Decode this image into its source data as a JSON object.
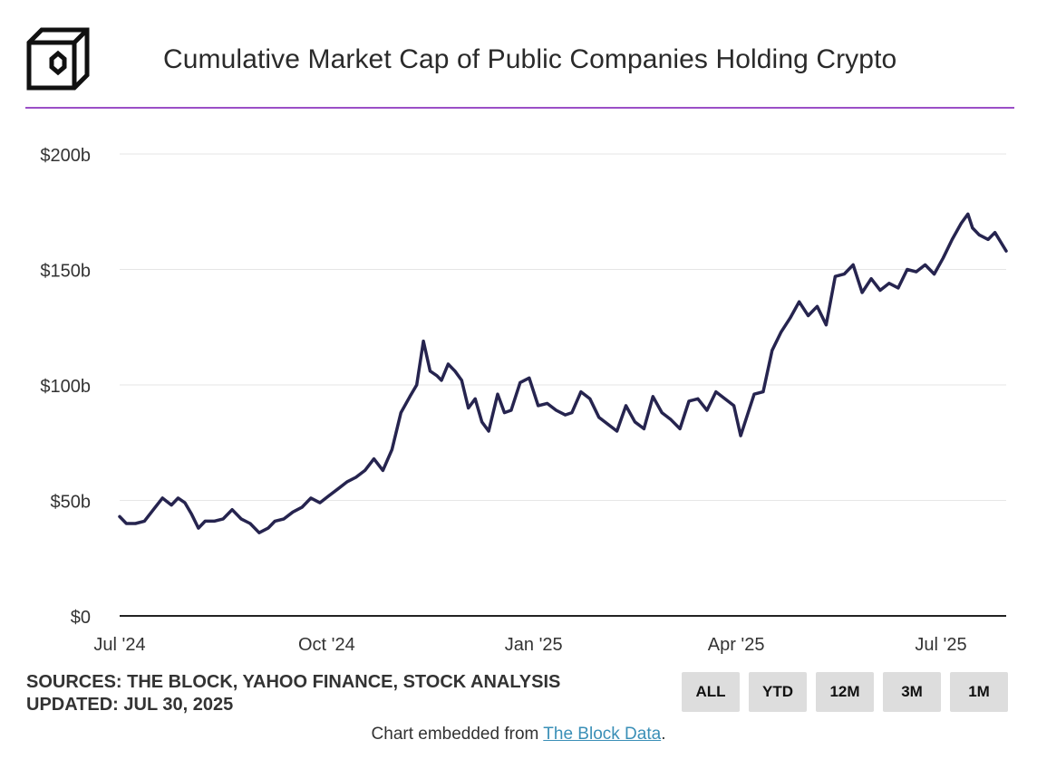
{
  "header": {
    "title": "Cumulative Market Cap of Public Companies Holding Crypto",
    "logo_icon": "the-block-cube-logo"
  },
  "chart_data": {
    "type": "line",
    "title": "Cumulative Market Cap of Public Companies Holding Crypto",
    "xlabel": "",
    "ylabel": "",
    "y_ticks": [
      {
        "value": 0,
        "label": "$0"
      },
      {
        "value": 50,
        "label": "$50b"
      },
      {
        "value": 100,
        "label": "$100b"
      },
      {
        "value": 150,
        "label": "$150b"
      },
      {
        "value": 200,
        "label": "$200b"
      }
    ],
    "x_ticks": [
      {
        "date": "2024-07-01",
        "label": "Jul '24"
      },
      {
        "date": "2024-10-01",
        "label": "Oct '24"
      },
      {
        "date": "2025-01-01",
        "label": "Jan '25"
      },
      {
        "date": "2025-04-01",
        "label": "Apr '25"
      },
      {
        "date": "2025-07-01",
        "label": "Jul '25"
      }
    ],
    "x_range": [
      "2024-07-01",
      "2025-07-30"
    ],
    "ylim": [
      0,
      200
    ],
    "grid": true,
    "line_color": "#26244f",
    "series": [
      {
        "x": [
          "2024-07-01",
          "2024-07-04",
          "2024-07-08",
          "2024-07-12",
          "2024-07-16",
          "2024-07-20",
          "2024-07-24",
          "2024-07-27",
          "2024-07-30",
          "2024-08-02",
          "2024-08-05",
          "2024-08-08",
          "2024-08-12",
          "2024-08-16",
          "2024-08-20",
          "2024-08-24",
          "2024-08-28",
          "2024-09-01",
          "2024-09-05",
          "2024-09-08",
          "2024-09-12",
          "2024-09-16",
          "2024-09-20",
          "2024-09-24",
          "2024-09-28",
          "2024-10-02",
          "2024-10-06",
          "2024-10-10",
          "2024-10-14",
          "2024-10-18",
          "2024-10-22",
          "2024-10-26",
          "2024-10-30",
          "2024-11-03",
          "2024-11-07",
          "2024-11-10",
          "2024-11-13",
          "2024-11-16",
          "2024-11-19",
          "2024-11-21",
          "2024-11-24",
          "2024-11-27",
          "2024-11-30",
          "2024-12-03",
          "2024-12-06",
          "2024-12-09",
          "2024-12-12",
          "2024-12-16",
          "2024-12-19",
          "2024-12-22",
          "2024-12-26",
          "2024-12-30",
          "2025-01-03",
          "2025-01-07",
          "2025-01-11",
          "2025-01-15",
          "2025-01-18",
          "2025-01-22",
          "2025-01-26",
          "2025-01-30",
          "2025-02-03",
          "2025-02-07",
          "2025-02-11",
          "2025-02-15",
          "2025-02-19",
          "2025-02-23",
          "2025-02-27",
          "2025-03-03",
          "2025-03-07",
          "2025-03-11",
          "2025-03-15",
          "2025-03-19",
          "2025-03-23",
          "2025-03-27",
          "2025-03-31",
          "2025-04-03",
          "2025-04-07",
          "2025-04-09",
          "2025-04-13",
          "2025-04-17",
          "2025-04-21",
          "2025-04-25",
          "2025-04-29",
          "2025-05-03",
          "2025-05-07",
          "2025-05-11",
          "2025-05-15",
          "2025-05-19",
          "2025-05-23",
          "2025-05-27",
          "2025-05-31",
          "2025-06-04",
          "2025-06-08",
          "2025-06-12",
          "2025-06-16",
          "2025-06-20",
          "2025-06-24",
          "2025-06-28",
          "2025-07-02",
          "2025-07-06",
          "2025-07-10",
          "2025-07-13",
          "2025-07-15",
          "2025-07-18",
          "2025-07-22",
          "2025-07-25",
          "2025-07-30"
        ],
        "values": [
          43,
          40,
          40,
          41,
          46,
          51,
          48,
          51,
          49,
          44,
          38,
          41,
          41,
          42,
          46,
          42,
          40,
          36,
          38,
          41,
          42,
          45,
          47,
          51,
          49,
          52,
          55,
          58,
          60,
          63,
          68,
          63,
          72,
          88,
          95,
          100,
          119,
          106,
          104,
          102,
          109,
          106,
          102,
          90,
          94,
          84,
          80,
          96,
          88,
          89,
          101,
          103,
          91,
          92,
          89,
          87,
          88,
          97,
          94,
          86,
          83,
          80,
          91,
          84,
          81,
          95,
          88,
          85,
          81,
          93,
          94,
          89,
          97,
          94,
          91,
          78,
          90,
          96,
          97,
          115,
          123,
          129,
          136,
          130,
          134,
          126,
          147,
          148,
          152,
          140,
          146,
          141,
          144,
          142,
          150,
          149,
          152,
          148,
          155,
          163,
          170,
          174,
          168,
          165,
          163,
          166,
          158
        ]
      }
    ]
  },
  "footer": {
    "sources": "SOURCES: THE BLOCK, YAHOO FINANCE, STOCK ANALYSIS",
    "updated": "UPDATED: JUL 30, 2025"
  },
  "range_buttons": [
    "ALL",
    "YTD",
    "12M",
    "3M",
    "1M"
  ],
  "embed": {
    "prefix": "Chart embedded from ",
    "link_text": "The Block Data",
    "suffix": "."
  }
}
